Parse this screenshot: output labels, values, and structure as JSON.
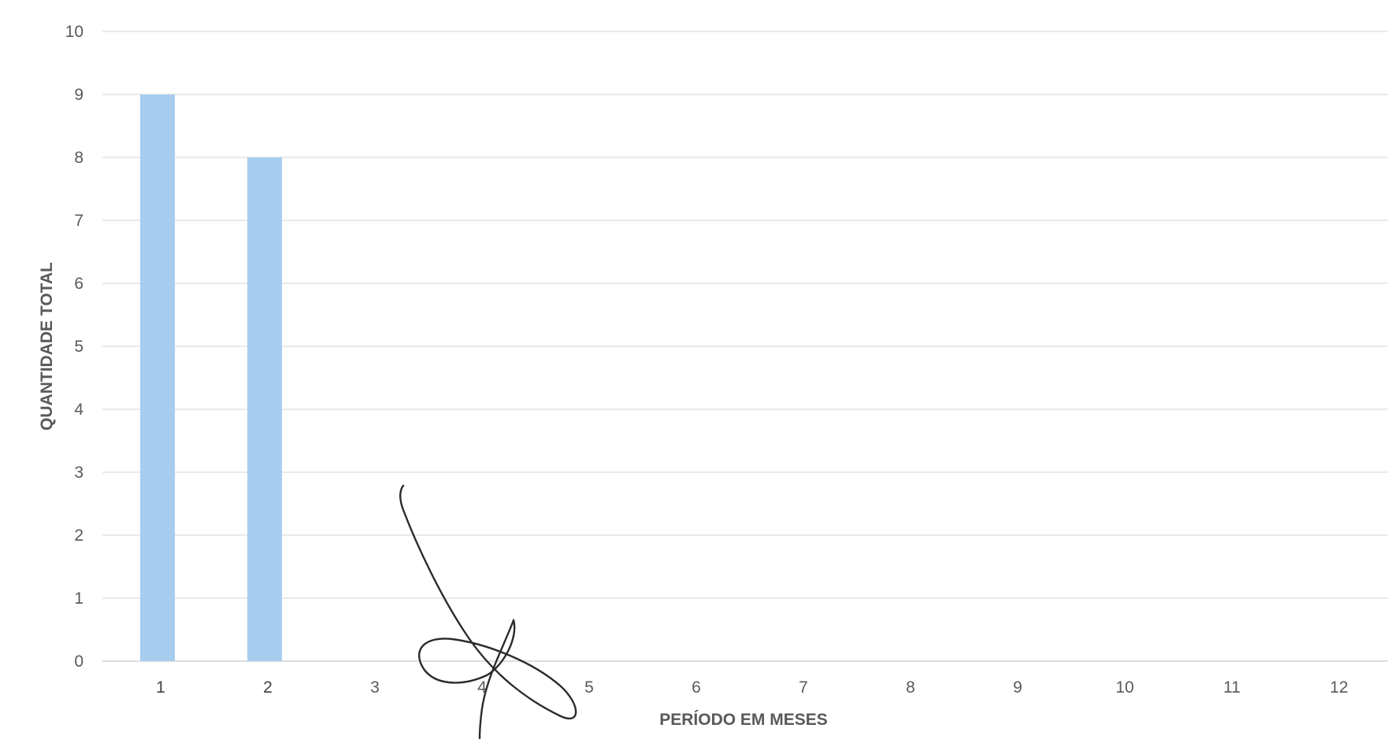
{
  "chart_data": {
    "type": "bar",
    "categories": [
      "1",
      "2",
      "3",
      "4",
      "5",
      "6",
      "7",
      "8",
      "9",
      "10",
      "11",
      "12"
    ],
    "values": [
      9,
      8,
      0,
      0,
      0,
      0,
      0,
      0,
      0,
      0,
      0,
      0
    ],
    "title": "",
    "xlabel": "PERÍODO EM MESES",
    "ylabel": "QUANTIDADE TOTAL",
    "ylim": [
      0,
      10
    ],
    "yticks": [
      "0",
      "1",
      "2",
      "3",
      "4",
      "5",
      "6",
      "7",
      "8",
      "9",
      "10"
    ],
    "grid": true,
    "legend": "none",
    "bar_color": "#a7cdef",
    "annotations": [
      "handwritten-signature"
    ]
  }
}
